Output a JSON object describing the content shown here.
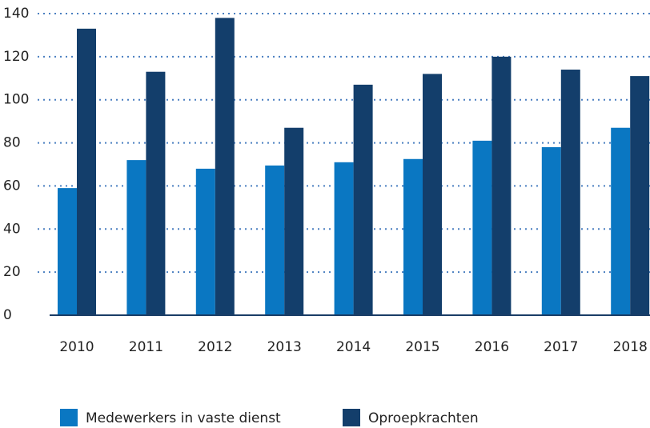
{
  "chart_data": {
    "type": "bar",
    "categories": [
      "2010",
      "2011",
      "2012",
      "2013",
      "2014",
      "2015",
      "2016",
      "2017",
      "2018"
    ],
    "series": [
      {
        "name": "Medewerkers in vaste dienst",
        "color": "#0a77c2",
        "values": [
          59,
          72,
          68,
          69.5,
          71,
          72.5,
          81,
          78,
          87
        ]
      },
      {
        "name": "Oproepkrachten",
        "color": "#133e6b",
        "values": [
          133,
          113,
          138,
          87,
          107,
          112,
          120,
          114,
          111
        ]
      }
    ],
    "ylim": [
      0,
      140
    ],
    "yticks": [
      0,
      20,
      40,
      60,
      80,
      100,
      120,
      140
    ],
    "grid": true
  }
}
